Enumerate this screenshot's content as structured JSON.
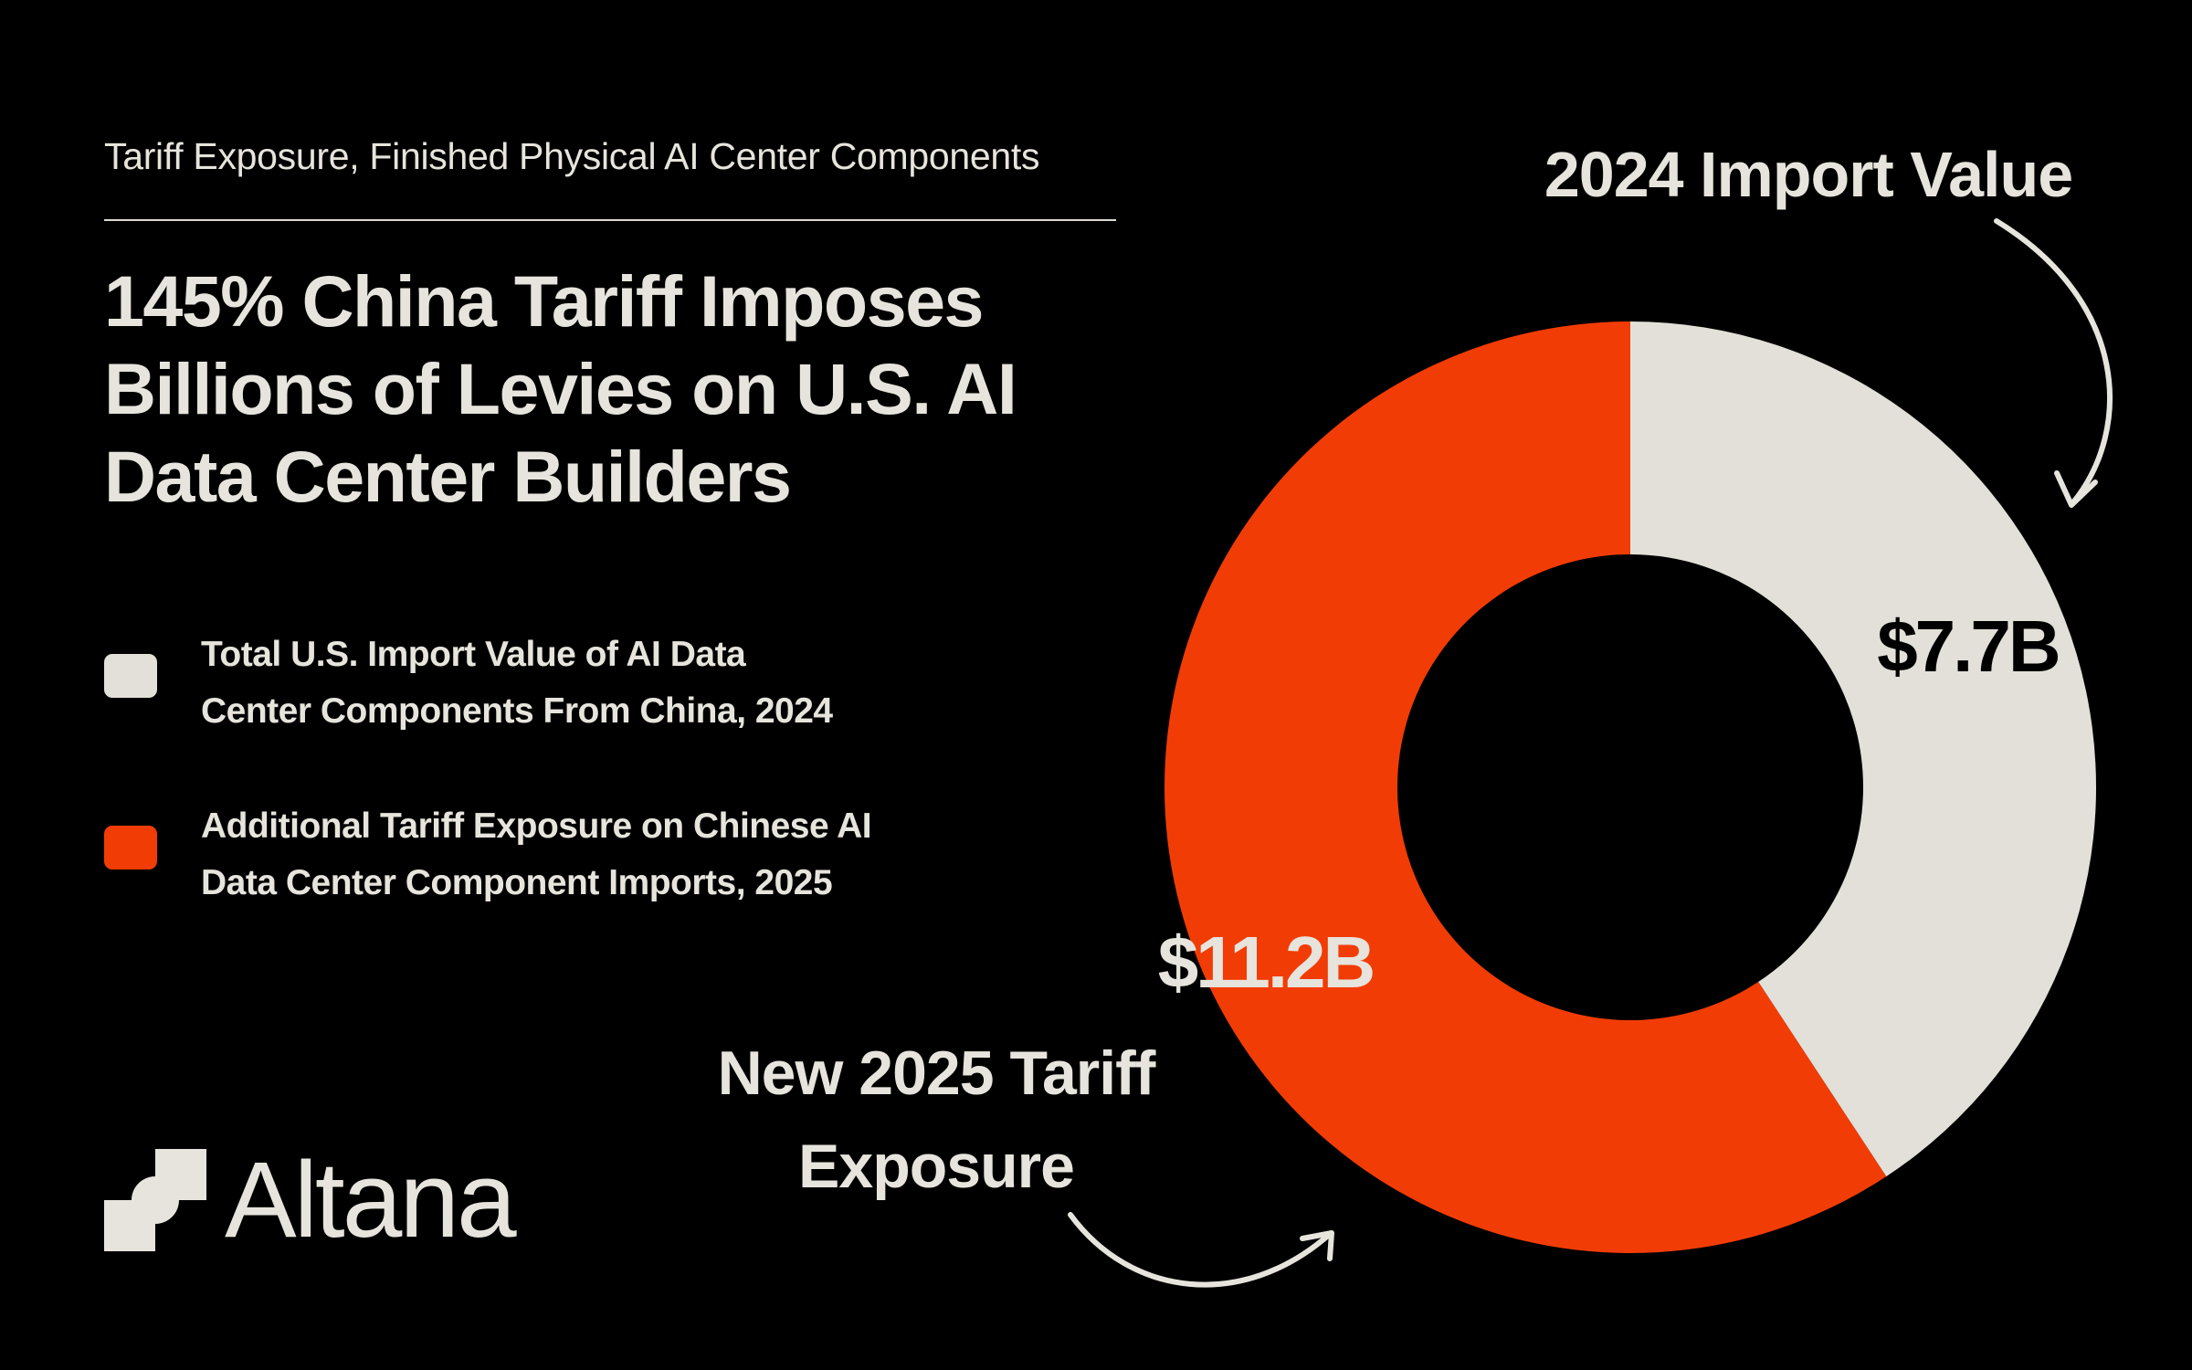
{
  "header": {
    "eyebrow": "Tariff Exposure, Finished Physical AI Center Components",
    "headline_lines": [
      "145% China Tariff Imposes",
      "Billions of Levies on U.S. AI",
      "Data Center Builders"
    ]
  },
  "legend": [
    {
      "lines": [
        "Total U.S. Import Value of AI Data",
        "Center Components From China, 2024"
      ],
      "color": "#e2e0d8"
    },
    {
      "lines": [
        "Additional Tariff Exposure on Chinese AI",
        "Data Center Component Imports, 2025"
      ],
      "color": "#f23c05"
    }
  ],
  "callouts": {
    "import": "2024 Import Value",
    "tariff_lines": [
      "New 2025 Tariff",
      "Exposure"
    ]
  },
  "logo": {
    "text": "Altana",
    "icon": "altana-logo-icon"
  },
  "chart_data": {
    "type": "pie",
    "donut": true,
    "slices": [
      {
        "label": "Total U.S. Import Value of AI Data Center Components From China, 2024",
        "value": 7.7,
        "display": "$7.7B",
        "color": "#e2e0d8"
      },
      {
        "label": "Additional Tariff Exposure on Chinese AI Data Center Component Imports, 2025",
        "value": 11.2,
        "display": "$11.2B",
        "color": "#f23c05"
      }
    ],
    "start": "top, clockwise"
  }
}
